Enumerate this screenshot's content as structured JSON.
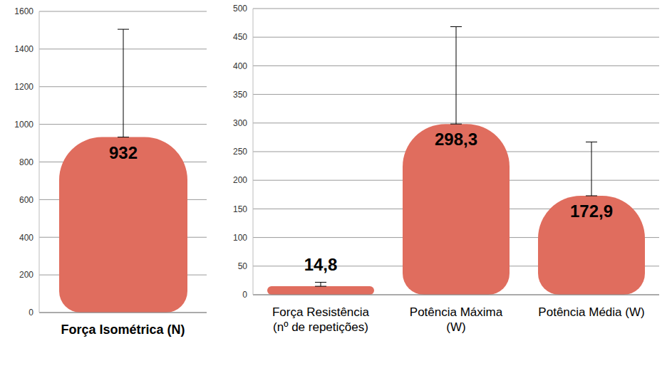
{
  "chart_data": [
    {
      "type": "bar",
      "categories": [
        "Força Isométrica (N)"
      ],
      "values": [
        932
      ],
      "value_labels": [
        "932"
      ],
      "errors": [
        573
      ],
      "color": "#e06d5e",
      "ylim": [
        0,
        1600
      ],
      "yticks": [
        0,
        200,
        400,
        600,
        800,
        1000,
        1200,
        1400,
        1600
      ],
      "grid": true,
      "data_labels": true
    },
    {
      "type": "bar",
      "categories": [
        "Força Resistência (nº de repetições)",
        "Potência Máxima (W)",
        "Potência Média (W)"
      ],
      "values": [
        14.8,
        298.3,
        172.9
      ],
      "value_labels": [
        "14,8",
        "298,3",
        "172,9"
      ],
      "errors": [
        7,
        170,
        94
      ],
      "color": "#e06d5e",
      "ylim": [
        0,
        500
      ],
      "yticks": [
        0,
        50,
        100,
        150,
        200,
        250,
        300,
        350,
        400,
        450,
        500
      ],
      "grid": true,
      "data_labels": true
    }
  ]
}
